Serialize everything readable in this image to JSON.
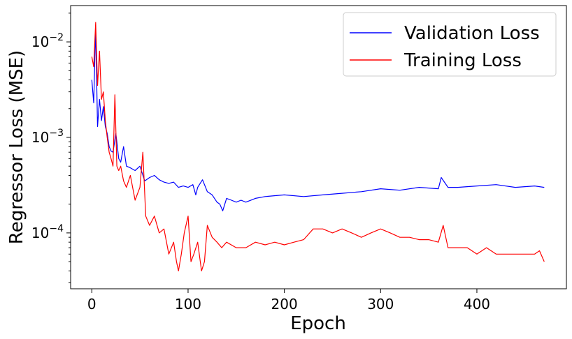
{
  "chart_data": {
    "type": "line",
    "xlabel": "Epoch",
    "ylabel": "Regressor Loss (MSE)",
    "yscale": "log",
    "xlim": [
      -22,
      493
    ],
    "ylim": [
      2.6e-05,
      0.024
    ],
    "x_ticks": [
      0,
      100,
      200,
      300,
      400
    ],
    "y_ticks": [
      {
        "value": 0.0001,
        "base": "10",
        "exp": "−4"
      },
      {
        "value": 0.001,
        "base": "10",
        "exp": "−3"
      },
      {
        "value": 0.01,
        "base": "10",
        "exp": "−2"
      }
    ],
    "grid": false,
    "legend_position": "top-right",
    "series": [
      {
        "name": "Validation Loss",
        "color": "#0000ff",
        "x": [
          0,
          2,
          4,
          6,
          8,
          10,
          12,
          14,
          16,
          18,
          20,
          22,
          25,
          28,
          30,
          33,
          36,
          40,
          45,
          50,
          55,
          60,
          65,
          70,
          75,
          80,
          85,
          90,
          95,
          100,
          105,
          108,
          110,
          115,
          120,
          125,
          130,
          133,
          136,
          140,
          145,
          150,
          155,
          160,
          170,
          180,
          200,
          220,
          240,
          260,
          280,
          300,
          320,
          340,
          360,
          363,
          370,
          380,
          400,
          420,
          440,
          460,
          470
        ],
        "y": [
          0.004,
          0.0023,
          0.014,
          0.0013,
          0.0025,
          0.0015,
          0.0021,
          0.0013,
          0.0011,
          0.0008,
          0.00072,
          0.0007,
          0.0011,
          0.0006,
          0.00055,
          0.0008,
          0.0005,
          0.00048,
          0.00045,
          0.0005,
          0.00035,
          0.00038,
          0.0004,
          0.00036,
          0.00034,
          0.00033,
          0.00034,
          0.0003,
          0.00031,
          0.0003,
          0.00032,
          0.00025,
          0.0003,
          0.00036,
          0.00027,
          0.00025,
          0.00021,
          0.0002,
          0.00017,
          0.00023,
          0.00022,
          0.00021,
          0.00022,
          0.00021,
          0.00023,
          0.00024,
          0.00025,
          0.00024,
          0.00025,
          0.00026,
          0.00027,
          0.00029,
          0.00028,
          0.0003,
          0.00029,
          0.00038,
          0.0003,
          0.0003,
          0.00031,
          0.00032,
          0.0003,
          0.00031,
          0.0003
        ]
      },
      {
        "name": "Training Loss",
        "color": "#ff0000",
        "x": [
          0,
          2,
          4,
          6,
          8,
          10,
          12,
          14,
          16,
          18,
          20,
          22,
          24,
          26,
          28,
          30,
          33,
          36,
          40,
          45,
          50,
          53,
          56,
          60,
          65,
          70,
          75,
          80,
          85,
          88,
          90,
          93,
          96,
          100,
          103,
          106,
          110,
          114,
          117,
          120,
          125,
          130,
          135,
          140,
          150,
          160,
          170,
          180,
          190,
          200,
          210,
          220,
          230,
          240,
          250,
          260,
          270,
          280,
          290,
          300,
          310,
          320,
          330,
          340,
          350,
          360,
          365,
          370,
          380,
          390,
          400,
          410,
          420,
          430,
          440,
          450,
          460,
          465,
          470
        ],
        "y": [
          0.007,
          0.0055,
          0.016,
          0.0035,
          0.008,
          0.0025,
          0.003,
          0.0015,
          0.001,
          0.0007,
          0.0006,
          0.0005,
          0.0028,
          0.0005,
          0.00045,
          0.0005,
          0.00035,
          0.0003,
          0.0004,
          0.00022,
          0.0003,
          0.0007,
          0.00015,
          0.00012,
          0.00015,
          0.0001,
          0.00011,
          6e-05,
          8e-05,
          5e-05,
          4e-05,
          6e-05,
          0.0001,
          0.00015,
          5e-05,
          6e-05,
          8e-05,
          4e-05,
          5e-05,
          0.00012,
          9e-05,
          8e-05,
          7e-05,
          8e-05,
          7e-05,
          7e-05,
          8e-05,
          7.5e-05,
          8e-05,
          7.5e-05,
          8e-05,
          8.5e-05,
          0.00011,
          0.00011,
          0.0001,
          0.00011,
          0.0001,
          9e-05,
          0.0001,
          0.00011,
          0.0001,
          9e-05,
          9e-05,
          8.5e-05,
          8.5e-05,
          8e-05,
          0.00012,
          7e-05,
          7e-05,
          7e-05,
          6e-05,
          7e-05,
          6e-05,
          6e-05,
          6e-05,
          6e-05,
          6e-05,
          6.5e-05,
          5e-05
        ]
      }
    ]
  }
}
